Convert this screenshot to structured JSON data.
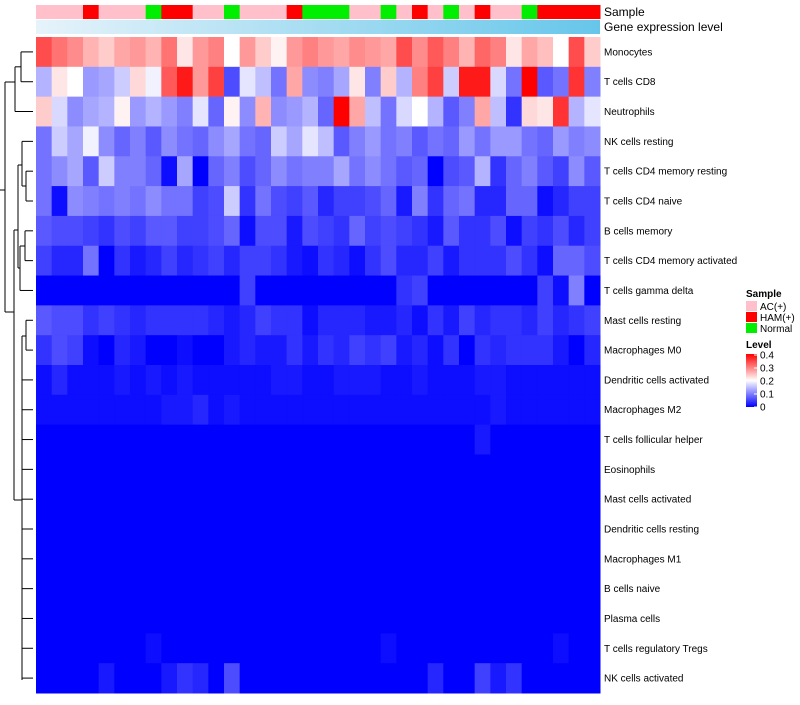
{
  "chart_data": {
    "type": "heatmap",
    "annotation_labels": [
      "Sample",
      "Gene expression level"
    ],
    "sample_groups": [
      "AC",
      "AC",
      "AC",
      "HAM",
      "AC",
      "AC",
      "AC",
      "Normal",
      "HAM",
      "HAM",
      "AC",
      "AC",
      "Normal",
      "AC",
      "AC",
      "AC",
      "HAM",
      "Normal",
      "Normal",
      "Normal",
      "AC",
      "AC",
      "Normal",
      "AC",
      "HAM",
      "AC",
      "Normal",
      "AC",
      "HAM",
      "AC",
      "AC",
      "Normal",
      "HAM",
      "HAM",
      "HAM",
      "HAM"
    ],
    "rows": [
      {
        "label": "Monocytes",
        "values": [
          0.34,
          0.31,
          0.29,
          0.26,
          0.24,
          0.27,
          0.28,
          0.26,
          0.31,
          0.22,
          0.28,
          0.3,
          0.2,
          0.28,
          0.24,
          0.21,
          0.28,
          0.3,
          0.28,
          0.27,
          0.29,
          0.28,
          0.27,
          0.34,
          0.29,
          0.33,
          0.3,
          0.26,
          0.32,
          0.3,
          0.22,
          0.27,
          0.25,
          0.2,
          0.34,
          0.24
        ]
      },
      {
        "label": "T cells CD8",
        "values": [
          0.14,
          0.22,
          0.2,
          0.12,
          0.13,
          0.16,
          0.23,
          0.19,
          0.33,
          0.38,
          0.28,
          0.35,
          0.06,
          0.18,
          0.15,
          0.09,
          0.27,
          0.11,
          0.1,
          0.13,
          0.22,
          0.1,
          0.24,
          0.14,
          0.3,
          0.35,
          0.16,
          0.38,
          0.38,
          0.17,
          0.09,
          0.4,
          0.07,
          0.09,
          0.36,
          0.1
        ]
      },
      {
        "label": "Neutrophils",
        "values": [
          0.24,
          0.17,
          0.11,
          0.13,
          0.14,
          0.21,
          0.12,
          0.14,
          0.12,
          0.1,
          0.18,
          0.08,
          0.21,
          0.11,
          0.26,
          0.11,
          0.12,
          0.14,
          0.08,
          0.4,
          0.27,
          0.15,
          0.09,
          0.17,
          0.2,
          0.14,
          0.07,
          0.1,
          0.27,
          0.15,
          0.04,
          0.23,
          0.22,
          0.36,
          0.14,
          0.18
        ]
      },
      {
        "label": "NK cells resting",
        "values": [
          0.09,
          0.16,
          0.13,
          0.19,
          0.11,
          0.08,
          0.1,
          0.07,
          0.11,
          0.09,
          0.08,
          0.11,
          0.13,
          0.09,
          0.08,
          0.16,
          0.13,
          0.18,
          0.15,
          0.07,
          0.1,
          0.12,
          0.09,
          0.1,
          0.07,
          0.09,
          0.08,
          0.12,
          0.09,
          0.12,
          0.12,
          0.09,
          0.08,
          0.12,
          0.1,
          0.11
        ]
      },
      {
        "label": "T cells CD4 memory resting",
        "values": [
          0.09,
          0.11,
          0.13,
          0.07,
          0.16,
          0.1,
          0.1,
          0.08,
          0.01,
          0.13,
          0.0,
          0.08,
          0.1,
          0.06,
          0.08,
          0.11,
          0.09,
          0.1,
          0.1,
          0.13,
          0.09,
          0.11,
          0.09,
          0.07,
          0.08,
          0.0,
          0.06,
          0.07,
          0.14,
          0.04,
          0.08,
          0.1,
          0.07,
          0.05,
          0.11,
          0.07
        ]
      },
      {
        "label": "T cells CD4 naive",
        "values": [
          0.09,
          0.01,
          0.11,
          0.1,
          0.09,
          0.1,
          0.09,
          0.11,
          0.09,
          0.09,
          0.05,
          0.06,
          0.16,
          0.04,
          0.09,
          0.06,
          0.05,
          0.07,
          0.03,
          0.05,
          0.05,
          0.06,
          0.08,
          0.02,
          0.1,
          0.04,
          0.08,
          0.09,
          0.03,
          0.03,
          0.08,
          0.08,
          0.01,
          0.03,
          0.05,
          0.05
        ]
      },
      {
        "label": "B cells memory",
        "values": [
          0.07,
          0.06,
          0.06,
          0.05,
          0.04,
          0.06,
          0.05,
          0.07,
          0.07,
          0.05,
          0.05,
          0.06,
          0.08,
          0.01,
          0.06,
          0.06,
          0.02,
          0.06,
          0.05,
          0.04,
          0.08,
          0.05,
          0.06,
          0.05,
          0.04,
          0.02,
          0.07,
          0.04,
          0.04,
          0.06,
          0.01,
          0.05,
          0.04,
          0.06,
          0.03,
          0.05
        ]
      },
      {
        "label": "T cells CD4 memory activated",
        "values": [
          0.05,
          0.03,
          0.03,
          0.09,
          0.0,
          0.04,
          0.02,
          0.03,
          0.05,
          0.03,
          0.04,
          0.05,
          0.03,
          0.05,
          0.05,
          0.04,
          0.02,
          0.01,
          0.04,
          0.03,
          0.01,
          0.04,
          0.06,
          0.03,
          0.03,
          0.05,
          0.02,
          0.04,
          0.04,
          0.04,
          0.06,
          0.04,
          0.01,
          0.08,
          0.08,
          0.06
        ]
      },
      {
        "label": "T cells gamma delta",
        "values": [
          0.0,
          0.0,
          0.0,
          0.0,
          0.0,
          0.0,
          0.0,
          0.0,
          0.0,
          0.0,
          0.0,
          0.0,
          0.0,
          0.05,
          0.0,
          0.0,
          0.0,
          0.0,
          0.0,
          0.0,
          0.0,
          0.0,
          0.0,
          0.04,
          0.05,
          0.0,
          0.0,
          0.0,
          0.0,
          0.0,
          0.0,
          0.0,
          0.05,
          0.01,
          0.1,
          0.0
        ]
      },
      {
        "label": "Mast cells resting",
        "values": [
          0.07,
          0.06,
          0.06,
          0.04,
          0.05,
          0.04,
          0.03,
          0.04,
          0.04,
          0.04,
          0.04,
          0.03,
          0.02,
          0.03,
          0.05,
          0.04,
          0.04,
          0.01,
          0.03,
          0.03,
          0.03,
          0.02,
          0.02,
          0.03,
          0.01,
          0.04,
          0.02,
          0.05,
          0.03,
          0.04,
          0.04,
          0.03,
          0.05,
          0.03,
          0.04,
          0.05
        ]
      },
      {
        "label": "Macrophages M0",
        "values": [
          0.04,
          0.06,
          0.05,
          0.01,
          0.0,
          0.03,
          0.02,
          0.0,
          0.0,
          0.01,
          0.0,
          0.0,
          0.02,
          0.03,
          0.02,
          0.02,
          0.04,
          0.02,
          0.04,
          0.03,
          0.05,
          0.04,
          0.05,
          0.02,
          0.03,
          0.01,
          0.04,
          0.0,
          0.04,
          0.03,
          0.04,
          0.04,
          0.04,
          0.02,
          0.0,
          0.03
        ]
      },
      {
        "label": "Dendritic cells activated",
        "values": [
          0.01,
          0.03,
          0.01,
          0.01,
          0.01,
          0.02,
          0.01,
          0.02,
          0.01,
          0.02,
          0.01,
          0.01,
          0.01,
          0.01,
          0.01,
          0.02,
          0.02,
          0.01,
          0.01,
          0.02,
          0.02,
          0.02,
          0.01,
          0.01,
          0.02,
          0.01,
          0.01,
          0.01,
          0.02,
          0.02,
          0.01,
          0.01,
          0.01,
          0.01,
          0.01,
          0.01
        ]
      },
      {
        "label": "Macrophages M2",
        "values": [
          0.01,
          0.01,
          0.01,
          0.01,
          0.01,
          0.01,
          0.01,
          0.01,
          0.02,
          0.02,
          0.03,
          0.01,
          0.02,
          0.01,
          0.01,
          0.01,
          0.01,
          0.01,
          0.01,
          0.01,
          0.01,
          0.01,
          0.01,
          0.01,
          0.01,
          0.01,
          0.01,
          0.01,
          0.01,
          0.02,
          0.01,
          0.01,
          0.01,
          0.01,
          0.01,
          0.01
        ]
      },
      {
        "label": "T cells follicular helper",
        "values": [
          0.0,
          0.0,
          0.0,
          0.0,
          0.0,
          0.0,
          0.0,
          0.0,
          0.0,
          0.0,
          0.0,
          0.0,
          0.0,
          0.0,
          0.0,
          0.0,
          0.0,
          0.0,
          0.0,
          0.0,
          0.0,
          0.0,
          0.0,
          0.0,
          0.0,
          0.0,
          0.0,
          0.0,
          0.02,
          0.0,
          0.0,
          0.0,
          0.0,
          0.0,
          0.0,
          0.0
        ]
      },
      {
        "label": "Eosinophils",
        "values": [
          0.0,
          0.0,
          0.0,
          0.0,
          0.0,
          0.0,
          0.0,
          0.0,
          0.0,
          0.0,
          0.0,
          0.0,
          0.0,
          0.0,
          0.0,
          0.0,
          0.0,
          0.0,
          0.0,
          0.0,
          0.0,
          0.0,
          0.0,
          0.0,
          0.0,
          0.0,
          0.0,
          0.0,
          0.0,
          0.0,
          0.0,
          0.0,
          0.0,
          0.0,
          0.0,
          0.0
        ]
      },
      {
        "label": "Mast cells activated",
        "values": [
          0.0,
          0.0,
          0.0,
          0.0,
          0.0,
          0.0,
          0.0,
          0.0,
          0.0,
          0.0,
          0.0,
          0.0,
          0.0,
          0.0,
          0.0,
          0.0,
          0.0,
          0.0,
          0.0,
          0.0,
          0.0,
          0.0,
          0.0,
          0.0,
          0.0,
          0.0,
          0.0,
          0.0,
          0.0,
          0.0,
          0.0,
          0.0,
          0.0,
          0.0,
          0.0,
          0.0
        ]
      },
      {
        "label": "Dendritic cells resting",
        "values": [
          0.0,
          0.0,
          0.0,
          0.0,
          0.0,
          0.0,
          0.0,
          0.0,
          0.0,
          0.0,
          0.0,
          0.0,
          0.0,
          0.0,
          0.0,
          0.0,
          0.0,
          0.0,
          0.0,
          0.0,
          0.0,
          0.0,
          0.0,
          0.0,
          0.0,
          0.0,
          0.0,
          0.0,
          0.0,
          0.0,
          0.0,
          0.0,
          0.0,
          0.0,
          0.0,
          0.0
        ]
      },
      {
        "label": "Macrophages M1",
        "values": [
          0.0,
          0.0,
          0.0,
          0.0,
          0.0,
          0.0,
          0.0,
          0.0,
          0.0,
          0.0,
          0.0,
          0.0,
          0.0,
          0.0,
          0.0,
          0.0,
          0.0,
          0.0,
          0.0,
          0.0,
          0.0,
          0.0,
          0.0,
          0.0,
          0.0,
          0.0,
          0.0,
          0.0,
          0.0,
          0.0,
          0.0,
          0.0,
          0.0,
          0.0,
          0.0,
          0.0
        ]
      },
      {
        "label": "B cells naive",
        "values": [
          0.0,
          0.0,
          0.0,
          0.0,
          0.0,
          0.0,
          0.0,
          0.0,
          0.0,
          0.0,
          0.0,
          0.0,
          0.0,
          0.0,
          0.0,
          0.0,
          0.0,
          0.0,
          0.0,
          0.0,
          0.0,
          0.0,
          0.0,
          0.0,
          0.0,
          0.0,
          0.0,
          0.0,
          0.0,
          0.0,
          0.0,
          0.0,
          0.0,
          0.0,
          0.0,
          0.0
        ]
      },
      {
        "label": "Plasma cells",
        "values": [
          0.0,
          0.0,
          0.0,
          0.0,
          0.0,
          0.0,
          0.0,
          0.0,
          0.0,
          0.0,
          0.0,
          0.0,
          0.0,
          0.0,
          0.0,
          0.0,
          0.0,
          0.0,
          0.0,
          0.0,
          0.0,
          0.0,
          0.0,
          0.0,
          0.0,
          0.0,
          0.0,
          0.0,
          0.0,
          0.0,
          0.0,
          0.0,
          0.0,
          0.0,
          0.0,
          0.0
        ]
      },
      {
        "label": "T cells regulatory  Tregs",
        "values": [
          0.0,
          0.0,
          0.0,
          0.0,
          0.0,
          0.0,
          0.0,
          0.01,
          0.0,
          0.0,
          0.0,
          0.0,
          0.0,
          0.0,
          0.0,
          0.0,
          0.0,
          0.0,
          0.0,
          0.0,
          0.0,
          0.0,
          0.01,
          0.0,
          0.0,
          0.0,
          0.0,
          0.0,
          0.0,
          0.0,
          0.0,
          0.0,
          0.0,
          0.01,
          0.0,
          0.0
        ]
      },
      {
        "label": "NK cells activated",
        "values": [
          0.0,
          0.0,
          0.0,
          0.0,
          0.02,
          0.0,
          0.0,
          0.0,
          0.02,
          0.04,
          0.03,
          0.0,
          0.06,
          0.0,
          0.0,
          0.0,
          0.0,
          0.0,
          0.0,
          0.0,
          0.0,
          0.0,
          0.0,
          0.0,
          0.0,
          0.03,
          0.0,
          0.0,
          0.05,
          0.02,
          0.04,
          0.0,
          0.0,
          0.0,
          0.0,
          0.0
        ]
      }
    ],
    "legend_sample": {
      "title": "Sample",
      "items": [
        {
          "key": "AC",
          "label": "AC(+)",
          "color": "#FFC0CB"
        },
        {
          "key": "HAM",
          "label": "HAM(+)",
          "color": "#FF0000"
        },
        {
          "key": "Normal",
          "label": "Normal",
          "color": "#00EE00"
        }
      ]
    },
    "legend_level": {
      "title": "Level",
      "ticks": [
        "0.4",
        "0.3",
        "0.2",
        "0.1",
        "0"
      ],
      "range": [
        0,
        0.4
      ]
    },
    "colors": {
      "low": "#0000FF",
      "mid": "#FFFFFF",
      "high": "#FF0000",
      "expression_bar_left": "#E6F3FA",
      "expression_bar_right": "#66C6EA"
    }
  }
}
